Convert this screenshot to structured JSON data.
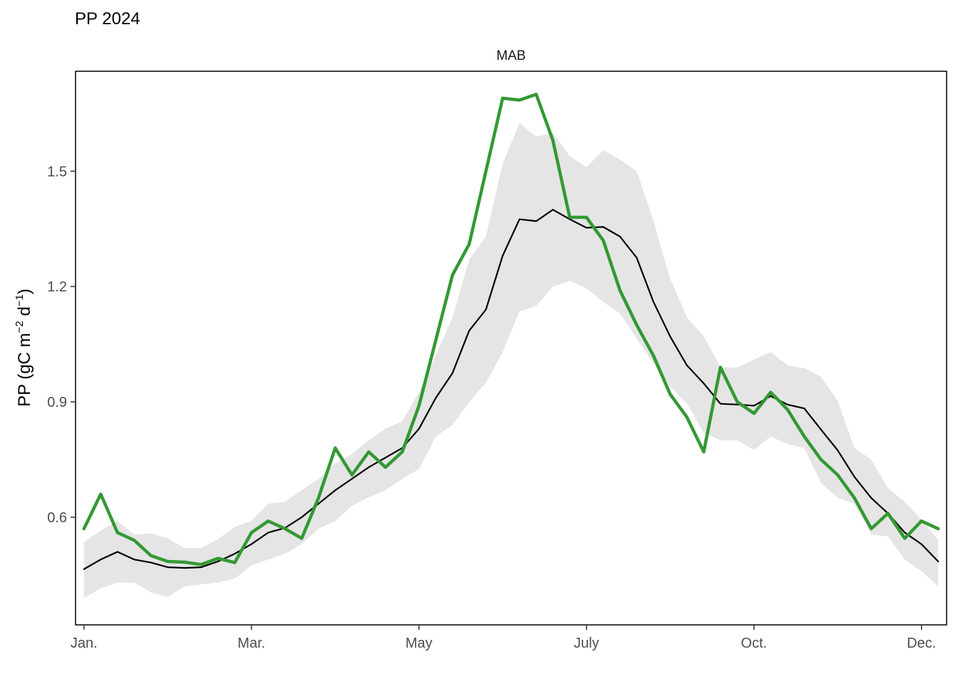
{
  "chart_data": {
    "type": "line",
    "title": "PP 2024",
    "panel": "MAB",
    "ylabel_main": "PP (gC m",
    "ylabel_sup1": "−2",
    "ylabel_mid": " d",
    "ylabel_sup2": "−1",
    "ylabel_end": ")",
    "xlabel": "",
    "x_ticks": [
      {
        "label": "Jan.",
        "week": 1
      },
      {
        "label": "Mar.",
        "week": 9
      },
      {
        "label": "May",
        "week": 17
      },
      {
        "label": "July",
        "week": 25
      },
      {
        "label": "Oct.",
        "week": 33
      },
      {
        "label": "Dec.",
        "week": 41
      }
    ],
    "y_ticks": [
      0.6,
      0.9,
      1.2,
      1.5
    ],
    "xlim": [
      0.6,
      42.2
    ],
    "ylim": [
      0.32,
      1.76
    ],
    "grid": false,
    "legend": "none",
    "colors": {
      "year_2024": "#339933",
      "climatology": "#000000",
      "range": "#e5e5e5"
    },
    "x": [
      1,
      1.8,
      2.6,
      3.4,
      4.2,
      5,
      5.8,
      6.6,
      7.4,
      8.2,
      9,
      9.8,
      10.6,
      11.4,
      12.2,
      13,
      13.8,
      14.6,
      15.4,
      16.2,
      17,
      17.8,
      18.6,
      19.4,
      20.2,
      21,
      21.8,
      22.6,
      23.4,
      24.2,
      25,
      25.8,
      26.6,
      27.4,
      28.2,
      29,
      29.8,
      30.6,
      31.4,
      32.2,
      33,
      33.8,
      34.6,
      35.4,
      36.2,
      37,
      37.8,
      38.6,
      39.4,
      40.2,
      41,
      41.8
    ],
    "series": [
      {
        "role": "year",
        "values": [
          0.57,
          0.66,
          0.56,
          0.54,
          0.5,
          0.485,
          0.483,
          0.477,
          0.493,
          0.482,
          0.56,
          0.59,
          0.57,
          0.545,
          0.65,
          0.78,
          0.71,
          0.77,
          0.73,
          0.77,
          0.89,
          1.06,
          1.23,
          1.31,
          1.5,
          1.69,
          1.685,
          1.7,
          1.58,
          1.38,
          1.38,
          1.32,
          1.19,
          1.1,
          1.02,
          0.92,
          0.86,
          0.77,
          0.99,
          0.9,
          0.87,
          0.925,
          0.88,
          0.81,
          0.75,
          0.71,
          0.65,
          0.57,
          0.61,
          0.545,
          0.59,
          0.57
        ]
      },
      {
        "role": "mean",
        "values": [
          0.465,
          0.49,
          0.51,
          0.49,
          0.482,
          0.47,
          0.468,
          0.47,
          0.485,
          0.505,
          0.53,
          0.56,
          0.572,
          0.6,
          0.635,
          0.67,
          0.7,
          0.73,
          0.755,
          0.78,
          0.83,
          0.91,
          0.975,
          1.085,
          1.14,
          1.28,
          1.375,
          1.37,
          1.4,
          1.375,
          1.353,
          1.355,
          1.33,
          1.275,
          1.16,
          1.07,
          0.995,
          0.948,
          0.895,
          0.893,
          0.89,
          0.915,
          0.893,
          0.883,
          0.828,
          0.774,
          0.705,
          0.65,
          0.61,
          0.56,
          0.53,
          0.485
        ]
      }
    ],
    "band": {
      "lower": [
        0.39,
        0.415,
        0.43,
        0.43,
        0.405,
        0.393,
        0.42,
        0.425,
        0.43,
        0.44,
        0.475,
        0.49,
        0.505,
        0.53,
        0.57,
        0.59,
        0.63,
        0.652,
        0.67,
        0.7,
        0.725,
        0.81,
        0.84,
        0.9,
        0.95,
        1.03,
        1.135,
        1.15,
        1.2,
        1.215,
        1.195,
        1.16,
        1.13,
        1.065,
        1.0,
        0.94,
        0.895,
        0.82,
        0.8,
        0.8,
        0.775,
        0.81,
        0.79,
        0.78,
        0.69,
        0.65,
        0.635,
        0.555,
        0.55,
        0.49,
        0.46,
        0.42
      ],
      "upper": [
        0.535,
        0.565,
        0.59,
        0.555,
        0.558,
        0.545,
        0.52,
        0.52,
        0.543,
        0.575,
        0.59,
        0.635,
        0.64,
        0.67,
        0.7,
        0.74,
        0.765,
        0.8,
        0.83,
        0.85,
        0.925,
        1.02,
        1.12,
        1.27,
        1.33,
        1.52,
        1.625,
        1.59,
        1.6,
        1.54,
        1.51,
        1.555,
        1.53,
        1.5,
        1.37,
        1.22,
        1.12,
        1.07,
        0.99,
        0.99,
        1.01,
        1.03,
        0.995,
        0.988,
        0.965,
        0.902,
        0.78,
        0.75,
        0.675,
        0.64,
        0.594,
        0.54
      ]
    }
  }
}
